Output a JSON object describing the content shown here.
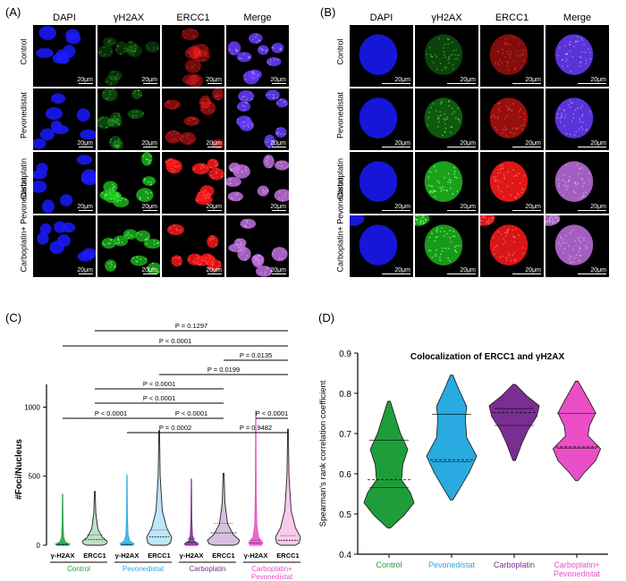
{
  "panels": {
    "a": {
      "label": "(A)",
      "channels": [
        "DAPI",
        "γH2AX",
        "ERCC1",
        "Merge"
      ],
      "rows": [
        "Control",
        "Pevonedistat",
        "Carboplatin",
        "Carboplatin+ Pevonedistat"
      ],
      "scale_bar": "20μm"
    },
    "b": {
      "label": "(B)",
      "channels": [
        "DAPI",
        "γH2AX",
        "ERCC1",
        "Merge"
      ],
      "rows": [
        "Control",
        "Pevonedistat",
        "Carboplatin",
        "Carboplatin+ Pevonedistat"
      ],
      "scale_bar": "20μm"
    },
    "c": {
      "label": "(C)"
    },
    "d": {
      "label": "(D)"
    }
  },
  "colors": {
    "dapi": "#1a1aff",
    "h2ax": "#22cc22",
    "ercc1": "#ff1a1a",
    "control": "#1e9e3a",
    "pevonedistat": "#29abe2",
    "carboplatin": "#7b2e91",
    "combo": "#ea4fc8"
  },
  "chart_data": [
    {
      "type": "violin",
      "ylabel": "#Foci/Nucleus",
      "ylim": [
        0,
        1100
      ],
      "yticks": [
        0,
        500,
        1000
      ],
      "categories": [
        "γ-H2AX",
        "ERCC1",
        "γ-H2AX",
        "ERCC1",
        "γ-H2AX",
        "ERCC1",
        "γ-H2AX",
        "ERCC1"
      ],
      "groups": [
        {
          "name": "Control",
          "color_key": "control"
        },
        {
          "name": "Pevonedistat",
          "color_key": "pevonedistat"
        },
        {
          "name": "Carboplatin",
          "color_key": "carboplatin"
        },
        {
          "name": "Carboplatin+\nPevonedistat",
          "color_key": "combo"
        }
      ],
      "series": [
        {
          "max": 370,
          "median": 3,
          "q1": 1,
          "q3": 8
        },
        {
          "max": 390,
          "median": 40,
          "q1": 18,
          "q3": 75
        },
        {
          "max": 510,
          "median": 3,
          "q1": 1,
          "q3": 8
        },
        {
          "max": 830,
          "median": 60,
          "q1": 30,
          "q3": 110
        },
        {
          "max": 480,
          "median": 20,
          "q1": 8,
          "q3": 50
        },
        {
          "max": 520,
          "median": 90,
          "q1": 45,
          "q3": 160
        },
        {
          "max": 970,
          "median": 15,
          "q1": 5,
          "q3": 35
        },
        {
          "max": 840,
          "median": 35,
          "q1": 15,
          "q3": 70
        }
      ],
      "comparisons": [
        {
          "from": 1,
          "to": 7,
          "label": "P = 0.1297"
        },
        {
          "from": 0,
          "to": 7,
          "label": "P < 0.0001"
        },
        {
          "from": 5,
          "to": 7,
          "label": "P = 0.0135"
        },
        {
          "from": 3,
          "to": 7,
          "label": "P = 0.0199"
        },
        {
          "from": 1,
          "to": 5,
          "label": "P < 0.0001"
        },
        {
          "from": 1,
          "to": 5,
          "label": "P < 0.0001",
          "note": "bracket to second level"
        },
        {
          "from": 0,
          "to": 3,
          "label": "P < 0.0001"
        },
        {
          "from": 3,
          "to": 5,
          "label": "P < 0.0001"
        },
        {
          "from": 6,
          "to": 7,
          "label": "P < 0.0001"
        },
        {
          "from": 2,
          "to": 5,
          "label": "P = 0.0002"
        },
        {
          "from": 5,
          "to": 7,
          "label": "P = 0.9482"
        }
      ]
    },
    {
      "type": "violin",
      "title": "Colocalization of ERCC1 and γH2AX",
      "ylabel": "Spearman's rank correlation coefficient",
      "ylim": [
        0.4,
        0.9
      ],
      "yticks": [
        0.4,
        0.5,
        0.6,
        0.7,
        0.8,
        0.9
      ],
      "categories": [
        "Control",
        "Pevonedistat",
        "Carboplatin",
        "Carboplatin+\nPevonedistat"
      ],
      "series": [
        {
          "name": "Control",
          "min": 0.465,
          "max": 0.78,
          "median": 0.585,
          "q1": 0.565,
          "q3": 0.683,
          "color_key": "control"
        },
        {
          "name": "Pevonedistat",
          "min": 0.535,
          "max": 0.845,
          "median": 0.635,
          "q1": 0.63,
          "q3": 0.748,
          "color_key": "pevonedistat"
        },
        {
          "name": "Carboplatin",
          "min": 0.633,
          "max": 0.822,
          "median": 0.752,
          "q1": 0.72,
          "q3": 0.762,
          "color_key": "carboplatin"
        },
        {
          "name": "Carboplatin+\nPevonedistat",
          "min": 0.583,
          "max": 0.83,
          "median": 0.667,
          "q1": 0.664,
          "q3": 0.75,
          "color_key": "combo"
        }
      ]
    }
  ]
}
